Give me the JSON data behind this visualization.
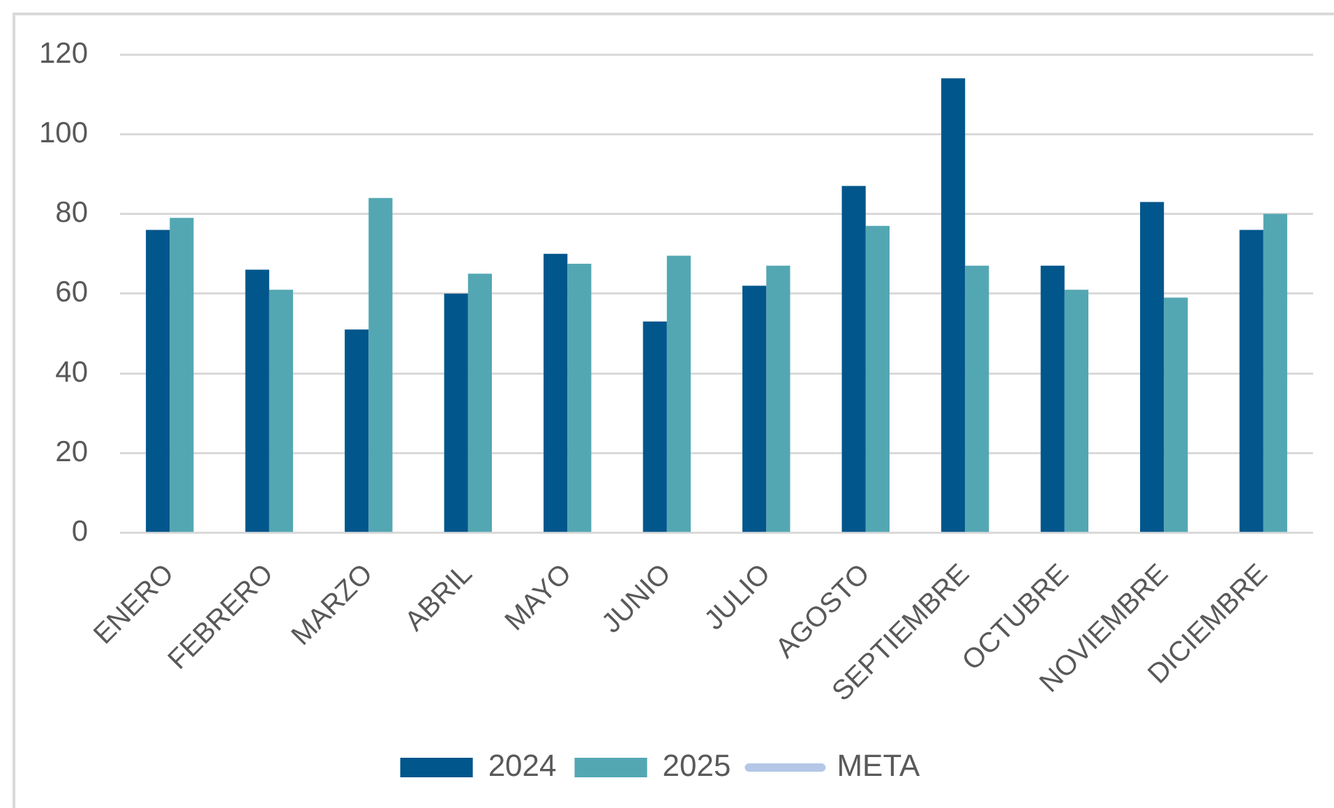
{
  "chart_data": {
    "type": "bar",
    "categories": [
      "ENERO",
      "FEBRERO",
      "MARZO",
      "ABRIL",
      "MAYO",
      "JUNIO",
      "JULIO",
      "AGOSTO",
      "SEPTIEMBRE",
      "OCTUBRE",
      "NOVIEMBRE",
      "DICIEMBRE"
    ],
    "series": [
      {
        "name": "2024",
        "color": "#01568c",
        "values": [
          76,
          66,
          51,
          60,
          70,
          53,
          62,
          87,
          114,
          67,
          83,
          76
        ]
      },
      {
        "name": "2025",
        "color": "#53a7b3",
        "values": [
          79,
          61,
          84,
          65,
          67.5,
          69.5,
          67,
          77,
          67,
          61,
          59,
          80
        ]
      },
      {
        "name": "META",
        "type": "line",
        "color": "#b4c7e7",
        "values": [
          null,
          null,
          null,
          null,
          null,
          null,
          null,
          null,
          null,
          null,
          null,
          null
        ]
      }
    ],
    "ylim": [
      0,
      120
    ],
    "yticks": [
      0,
      20,
      40,
      60,
      80,
      100,
      120
    ],
    "grid": "y",
    "legend": "bottom"
  }
}
